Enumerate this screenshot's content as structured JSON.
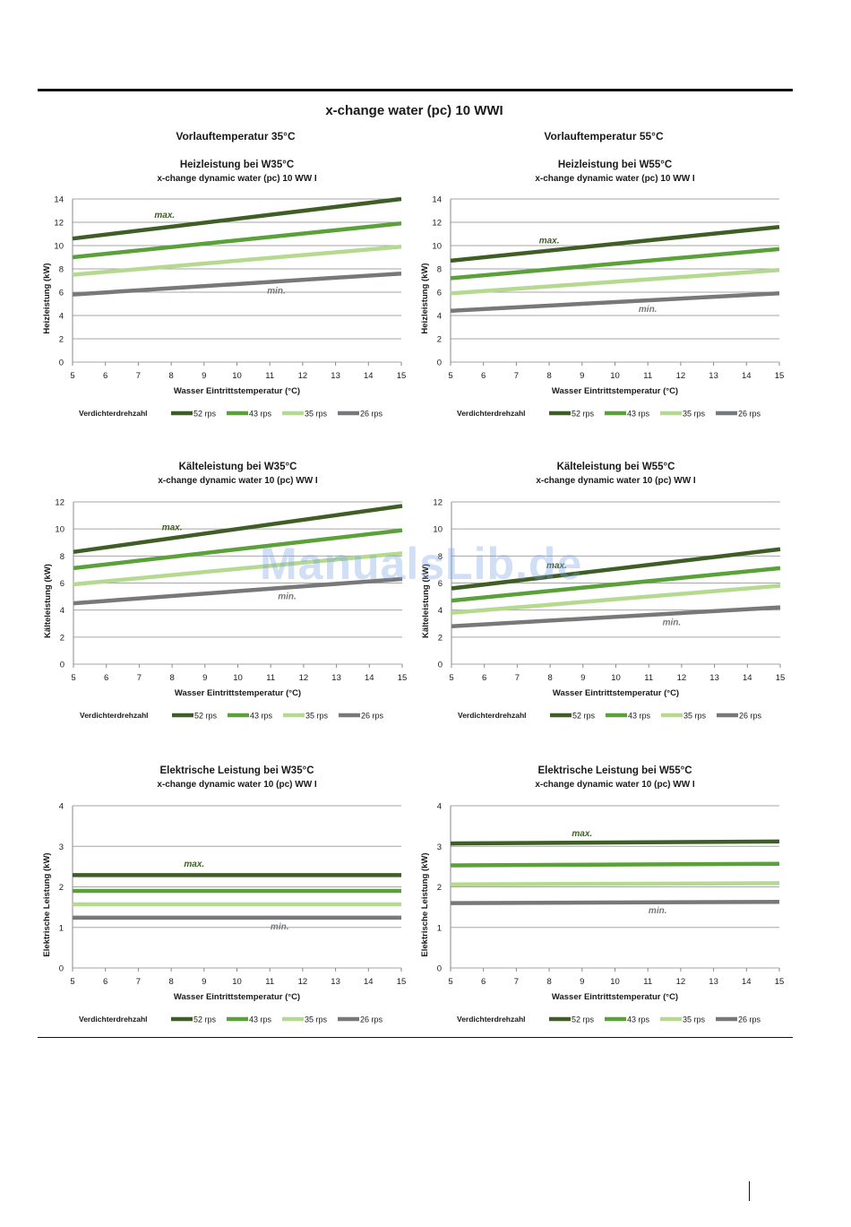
{
  "page": {
    "title": "x-change water (pc) 10 WWI",
    "left_heading": "Vorlauftemperatur 35°C",
    "right_heading": "Vorlauftemperatur 55°C",
    "watermark": "ManualsLib.de"
  },
  "legend": {
    "label": "Verdichterdrehzahl",
    "colors": [
      "#3e5e26",
      "#5aa13a",
      "#b4d98f",
      "#76787a"
    ]
  },
  "chart_data": [
    {
      "type": "line",
      "title": "Heizleistung bei W35°C",
      "subtitle": "x-change dynamic water (pc) 10 WW I",
      "xlabel": "Wasser Eintrittstemperatur (°C)",
      "ylabel": "Heizleistung (kW)",
      "xlim": [
        5,
        15
      ],
      "ylim": [
        0,
        14
      ],
      "yticks": [
        0,
        2,
        4,
        6,
        8,
        10,
        12,
        14
      ],
      "x": [
        5,
        15
      ],
      "grid": "horizontal",
      "legend": "bottom",
      "annotations": [
        {
          "text": "max.",
          "x": 7.8,
          "y": 12.4
        },
        {
          "text": "min.",
          "x": 11.2,
          "y": 5.9
        }
      ],
      "series": [
        {
          "name": "52 rps",
          "values": [
            10.6,
            14.0
          ]
        },
        {
          "name": "43 rps",
          "values": [
            9.0,
            11.9
          ]
        },
        {
          "name": "35 rps",
          "values": [
            7.5,
            9.9
          ]
        },
        {
          "name": "26 rps",
          "values": [
            5.8,
            7.6
          ]
        }
      ]
    },
    {
      "type": "line",
      "title": "Heizleistung bei W55°C",
      "subtitle": "x-change dynamic water (pc) 10 WW I",
      "xlabel": "Wasser Eintrittstemperatur (°C)",
      "ylabel": "Heizleistung (kW)",
      "xlim": [
        5,
        15
      ],
      "ylim": [
        0,
        14
      ],
      "yticks": [
        0,
        2,
        4,
        6,
        8,
        10,
        12,
        14
      ],
      "x": [
        5,
        15
      ],
      "grid": "horizontal",
      "legend": "bottom",
      "annotations": [
        {
          "text": "max.",
          "x": 8.0,
          "y": 10.2
        },
        {
          "text": "min.",
          "x": 11.0,
          "y": 4.3
        }
      ],
      "series": [
        {
          "name": "52 rps",
          "values": [
            8.7,
            11.6
          ]
        },
        {
          "name": "43 rps",
          "values": [
            7.2,
            9.7
          ]
        },
        {
          "name": "35 rps",
          "values": [
            5.9,
            7.9
          ]
        },
        {
          "name": "26 rps",
          "values": [
            4.4,
            5.9
          ]
        }
      ]
    },
    {
      "type": "line",
      "title": "Kälteleistung bei W35°C",
      "subtitle": "x-change dynamic water 10 (pc) WW I",
      "xlabel": "Wasser Eintrittstemperatur (°C)",
      "ylabel": "Kälteleistung (kW)",
      "xlim": [
        5,
        15
      ],
      "ylim": [
        0,
        12
      ],
      "yticks": [
        0,
        2,
        4,
        6,
        8,
        10,
        12
      ],
      "x": [
        5,
        15
      ],
      "grid": "horizontal",
      "legend": "bottom",
      "annotations": [
        {
          "text": "max.",
          "x": 8.0,
          "y": 9.9
        },
        {
          "text": "min.",
          "x": 11.5,
          "y": 4.8
        }
      ],
      "series": [
        {
          "name": "52 rps",
          "values": [
            8.3,
            11.7
          ]
        },
        {
          "name": "43 rps",
          "values": [
            7.1,
            9.9
          ]
        },
        {
          "name": "35 rps",
          "values": [
            5.9,
            8.2
          ]
        },
        {
          "name": "26 rps",
          "values": [
            4.5,
            6.3
          ]
        }
      ]
    },
    {
      "type": "line",
      "title": "Kälteleistung bei W55°C",
      "subtitle": "x-change dynamic water 10 (pc) WW I",
      "xlabel": "Wasser Eintrittstemperatur (°C)",
      "ylabel": "Kälteleistung (kW)",
      "xlim": [
        5,
        15
      ],
      "ylim": [
        0,
        12
      ],
      "yticks": [
        0,
        2,
        4,
        6,
        8,
        10,
        12
      ],
      "x": [
        5,
        15
      ],
      "grid": "horizontal",
      "legend": "bottom",
      "annotations": [
        {
          "text": "max.",
          "x": 8.2,
          "y": 7.1
        },
        {
          "text": "min.",
          "x": 11.7,
          "y": 2.9
        }
      ],
      "series": [
        {
          "name": "52 rps",
          "values": [
            5.6,
            8.5
          ]
        },
        {
          "name": "43 rps",
          "values": [
            4.7,
            7.1
          ]
        },
        {
          "name": "35 rps",
          "values": [
            3.8,
            5.8
          ]
        },
        {
          "name": "26 rps",
          "values": [
            2.8,
            4.2
          ]
        }
      ]
    },
    {
      "type": "line",
      "title": "Elektrische Leistung bei W35°C",
      "subtitle": "x-change dynamic water 10 (pc) WW I",
      "xlabel": "Wasser Eintrittstemperatur (°C)",
      "ylabel": "Elektrische Leistung (kW)",
      "xlim": [
        5,
        15
      ],
      "ylim": [
        0,
        4
      ],
      "yticks": [
        0,
        1,
        2,
        3,
        4
      ],
      "x": [
        5,
        15
      ],
      "grid": "horizontal",
      "legend": "bottom",
      "annotations": [
        {
          "text": "max.",
          "x": 8.7,
          "y": 2.5
        },
        {
          "text": "min.",
          "x": 11.3,
          "y": 0.95
        }
      ],
      "series": [
        {
          "name": "52 rps",
          "values": [
            2.29,
            2.29
          ]
        },
        {
          "name": "43 rps",
          "values": [
            1.9,
            1.9
          ]
        },
        {
          "name": "35 rps",
          "values": [
            1.57,
            1.57
          ]
        },
        {
          "name": "26 rps",
          "values": [
            1.24,
            1.24
          ]
        }
      ]
    },
    {
      "type": "line",
      "title": "Elektrische Leistung bei W55°C",
      "subtitle": "x-change dynamic water 10 (pc) WW I",
      "xlabel": "Wasser Eintrittstemperatur (°C)",
      "ylabel": "Elektrische Leistung (kW)",
      "xlim": [
        5,
        15
      ],
      "ylim": [
        0,
        4
      ],
      "yticks": [
        0,
        1,
        2,
        3,
        4
      ],
      "x": [
        5,
        15
      ],
      "grid": "horizontal",
      "legend": "bottom",
      "annotations": [
        {
          "text": "max.",
          "x": 9.0,
          "y": 3.25
        },
        {
          "text": "min.",
          "x": 11.3,
          "y": 1.35
        }
      ],
      "series": [
        {
          "name": "52 rps",
          "values": [
            3.07,
            3.12
          ]
        },
        {
          "name": "43 rps",
          "values": [
            2.53,
            2.57
          ]
        },
        {
          "name": "35 rps",
          "values": [
            2.06,
            2.09
          ]
        },
        {
          "name": "26 rps",
          "values": [
            1.6,
            1.63
          ]
        }
      ]
    }
  ]
}
